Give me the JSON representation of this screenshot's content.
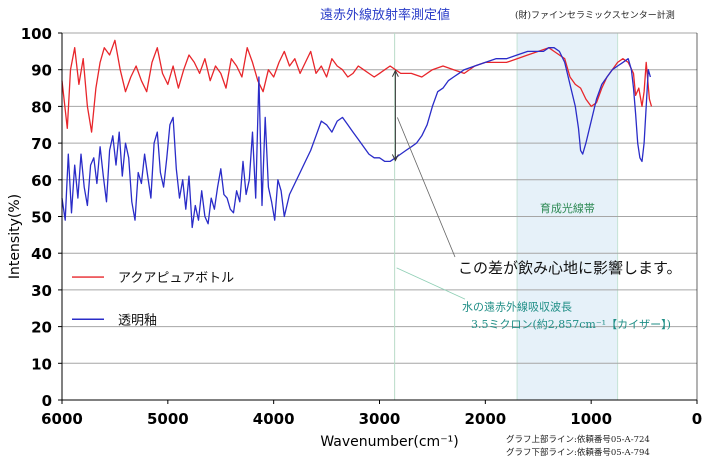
{
  "header": {
    "title": "遠赤外線放射率測定値",
    "source": "(財)ファインセラミックスセンター計測"
  },
  "footnotes": {
    "upper": "グラフ上部ライン:依頼番号05-A-724",
    "lower": "グラフ下部ライン:依頼番号05-A-794"
  },
  "chart_data": {
    "type": "line",
    "title": "",
    "xlabel": "Wavenumber(cm⁻¹)",
    "ylabel": "Intensity(%)",
    "xlim": [
      6000,
      0
    ],
    "ylim": [
      0,
      100
    ],
    "x_ticks": [
      6000,
      5000,
      4000,
      3000,
      2000,
      1000,
      0
    ],
    "y_ticks": [
      0,
      10,
      20,
      30,
      40,
      50,
      60,
      70,
      80,
      90,
      100
    ],
    "grid": true,
    "legend_position": "left-middle",
    "series": [
      {
        "name": "アクアピュアボトル",
        "color": "#e8262b",
        "x": [
          6000,
          5950,
          5920,
          5880,
          5840,
          5800,
          5760,
          5720,
          5680,
          5640,
          5600,
          5550,
          5500,
          5450,
          5400,
          5350,
          5300,
          5250,
          5200,
          5150,
          5100,
          5050,
          5000,
          4950,
          4900,
          4850,
          4800,
          4750,
          4700,
          4650,
          4600,
          4550,
          4500,
          4450,
          4400,
          4350,
          4300,
          4250,
          4200,
          4150,
          4100,
          4050,
          4000,
          3950,
          3900,
          3850,
          3800,
          3750,
          3700,
          3650,
          3600,
          3550,
          3500,
          3450,
          3400,
          3350,
          3300,
          3250,
          3200,
          3150,
          3100,
          3050,
          3000,
          2950,
          2900,
          2850,
          2800,
          2700,
          2600,
          2500,
          2400,
          2300,
          2200,
          2100,
          2000,
          1900,
          1800,
          1700,
          1600,
          1500,
          1400,
          1350,
          1300,
          1250,
          1200,
          1150,
          1100,
          1050,
          1000,
          950,
          900,
          850,
          800,
          750,
          700,
          650,
          600,
          580,
          550,
          520,
          500,
          480,
          450,
          430
        ],
        "y": [
          87,
          74,
          90,
          96,
          86,
          93,
          80,
          73,
          85,
          92,
          96,
          94,
          98,
          90,
          84,
          88,
          91,
          87,
          84,
          92,
          96,
          89,
          86,
          91,
          85,
          90,
          94,
          92,
          89,
          93,
          87,
          91,
          89,
          85,
          93,
          91,
          88,
          96,
          92,
          87,
          84,
          90,
          88,
          92,
          95,
          91,
          93,
          89,
          92,
          95,
          89,
          91,
          88,
          93,
          91,
          90,
          88,
          89,
          91,
          90,
          89,
          88,
          89,
          90,
          91,
          90,
          89,
          89,
          88,
          90,
          91,
          90,
          89,
          91,
          92,
          92,
          92,
          93,
          94,
          95,
          96,
          95,
          94,
          93,
          88,
          86,
          85,
          82,
          80,
          81,
          85,
          88,
          90,
          92,
          93,
          92,
          89,
          83,
          85,
          80,
          84,
          92,
          82,
          80
        ]
      },
      {
        "name": "透明釉",
        "color": "#2a2cc8",
        "x": [
          6000,
          5970,
          5940,
          5910,
          5880,
          5850,
          5820,
          5790,
          5760,
          5730,
          5700,
          5670,
          5640,
          5610,
          5580,
          5550,
          5520,
          5490,
          5460,
          5430,
          5400,
          5370,
          5340,
          5310,
          5280,
          5250,
          5220,
          5190,
          5160,
          5130,
          5100,
          5070,
          5040,
          5010,
          4980,
          4950,
          4920,
          4890,
          4860,
          4830,
          4800,
          4770,
          4740,
          4710,
          4680,
          4650,
          4620,
          4590,
          4560,
          4530,
          4500,
          4470,
          4440,
          4410,
          4380,
          4350,
          4320,
          4290,
          4260,
          4230,
          4200,
          4170,
          4140,
          4110,
          4080,
          4050,
          4020,
          3990,
          3960,
          3930,
          3900,
          3850,
          3800,
          3750,
          3700,
          3650,
          3600,
          3550,
          3500,
          3450,
          3400,
          3350,
          3300,
          3250,
          3200,
          3150,
          3100,
          3050,
          3000,
          2950,
          2900,
          2850,
          2800,
          2750,
          2700,
          2650,
          2600,
          2550,
          2500,
          2450,
          2400,
          2350,
          2300,
          2250,
          2200,
          2100,
          2000,
          1900,
          1800,
          1700,
          1600,
          1500,
          1450,
          1400,
          1350,
          1300,
          1250,
          1200,
          1150,
          1120,
          1100,
          1080,
          1050,
          1000,
          950,
          900,
          850,
          800,
          750,
          700,
          650,
          620,
          600,
          580,
          560,
          540,
          520,
          500,
          480,
          460,
          440
        ],
        "y": [
          55,
          49,
          67,
          51,
          64,
          55,
          67,
          58,
          53,
          64,
          66,
          59,
          69,
          61,
          54,
          68,
          72,
          64,
          73,
          61,
          70,
          66,
          54,
          49,
          62,
          59,
          67,
          61,
          55,
          70,
          73,
          62,
          58,
          66,
          75,
          77,
          63,
          55,
          60,
          52,
          61,
          47,
          53,
          49,
          57,
          50,
          48,
          55,
          52,
          58,
          63,
          56,
          55,
          52,
          51,
          57,
          54,
          65,
          56,
          60,
          73,
          55,
          88,
          53,
          77,
          58,
          54,
          49,
          60,
          57,
          50,
          56,
          59,
          62,
          65,
          68,
          72,
          76,
          75,
          73,
          76,
          77,
          75,
          73,
          71,
          69,
          67,
          66,
          66,
          65,
          65,
          66,
          67,
          68,
          69,
          70,
          72,
          75,
          80,
          84,
          85,
          87,
          88,
          89,
          90,
          91,
          92,
          93,
          93,
          94,
          95,
          95,
          95,
          96,
          96,
          95,
          92,
          86,
          80,
          74,
          68,
          67,
          70,
          76,
          82,
          86,
          88,
          90,
          91,
          92,
          93,
          90,
          85,
          78,
          70,
          66,
          65,
          70,
          80,
          90,
          88
        ]
      }
    ],
    "annotations": {
      "band_label": "育成光線帯",
      "band_x": [
        1700,
        750
      ],
      "water_line_x": 2857,
      "water_label_1": "水の遠赤外線吸収波長",
      "water_label_2": "3.5ミクロン(約2,857cm⁻¹【カイザー】)",
      "difference_label": "この差が飲み心地に影響します。",
      "difference_arrow_x": 2850,
      "difference_arrow_y": [
        90,
        65
      ]
    }
  }
}
